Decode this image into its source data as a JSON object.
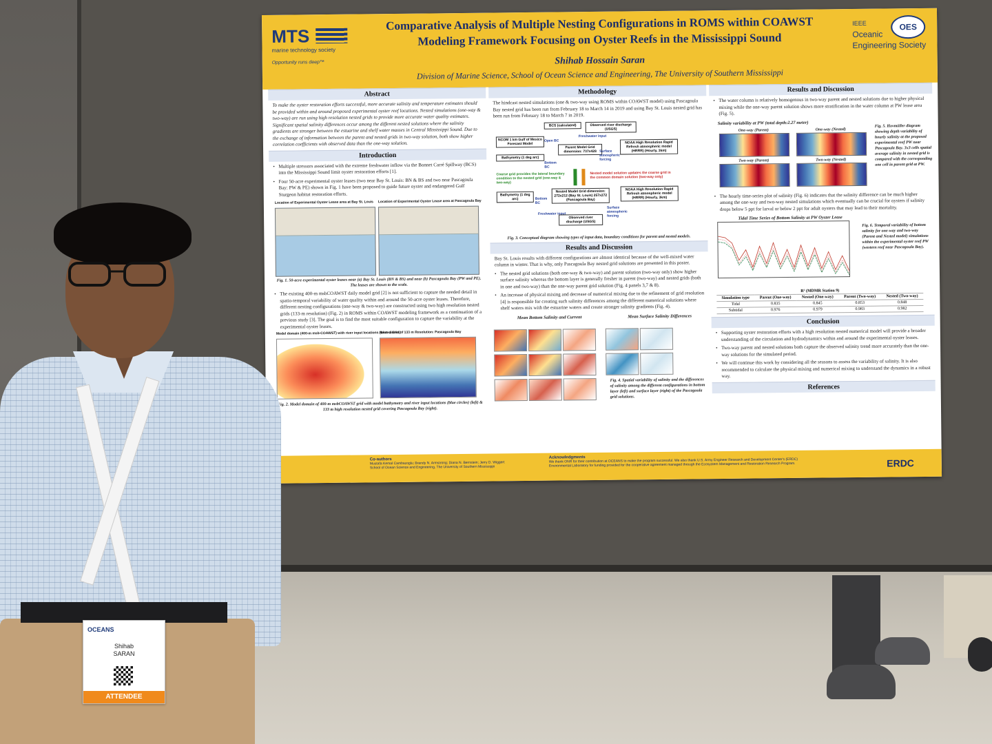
{
  "poster": {
    "mts": {
      "name": "MTS",
      "subtitle": "marine technology society",
      "tagline": "Opportunity runs deep™"
    },
    "title_line1": "Comparative Analysis of Multiple Nesting Configurations in ROMS within COAWST",
    "title_line2": "Modeling Framework Focusing on Oyster Reefs in the Mississippi Sound",
    "author": "Shihab Hossain Saran",
    "affiliation": "Division of Marine Science, School of Ocean Science and Engineering, The University of Southern Mississippi",
    "oes": {
      "badge": "OES",
      "ieee": "IEEE",
      "line1": "Oceanic",
      "line2": "Engineering Society"
    },
    "abstract": {
      "heading": "Abstract",
      "text": "To make the oyster restoration efforts successful, more accurate salinity and temperature estimates should be provided within and around proposed experimental oyster reef locations. Nested simulations (one-way & two-way) are run using high resolution nested grids to provide more accurate water quality estimates. Significant spatial salinity differences occur among the different nested solutions where the salinity gradients are stronger between the estuarine and shelf water masses in Central Mississippi Sound. Due to the exchange of information between the parent and nested grids in two-way solution, both show higher correlation coefficients with observed data than the one-way solution."
    },
    "introduction": {
      "heading": "Introduction",
      "bullets": [
        "Multiple stressors associated with the extreme freshwater inflow via the Bonnet Carré Spillway (BCS) into the Mississippi Sound limit oyster restoration efforts [1].",
        "Four 50-acre experimental oyster leases (two near Bay St. Louis: BN & BS and two near Pascagoula Bay: PW & PE) shown in Fig. 1 have been proposed to guide future oyster and endangered Gulf Sturgeon habitat restoration efforts."
      ],
      "map_title_1": "Location of Experimental Oyster Lease area at Bay St. Louis",
      "map_title_2": "Location of Experimental Oyster Lease area at Pascagoula Bay",
      "fig1_caption": "Fig. 1. 50-acre experimental oyster leases near (a) Bay St. Louis (BN & BS) and near (b) Pascagoula Bay (PW and PE). The leases are shown to the scale.",
      "bullet3": "The existing 400-m msbCOAWST daily model grid [2] is not sufficient to capture the needed detail in spatio-temporal variability of water quality within and around the 50-acre oyster leases. Therefore, different nesting configurations (one-way & two-way) are constructed using two high resolution nested grids (133-m resolution) (Fig. 2) in ROMS within COAWST modeling framework as a continuation of a previous study [3]. The goal is to find the most suitable configuration to capture the variability at the experimental oyster leases.",
      "domain_title_1": "Model domain (400-m msb-COAWST) with river input locations (blue circles)",
      "domain_title_2": "Nested Grid of 133 m Resolution: Pascagoula Bay",
      "fig2_caption": "Fig. 2. Model domain of 400-m msbCOAWST grid with model bathymetry and river input locations (blue circles) (left) & 133 m high resolution nested grid covering Pascagoula Bay (right)."
    },
    "methodology": {
      "heading": "Methodology",
      "text": "The hindcast nested simulations (one & two-way using ROMS within COAWST model) using Pascagoula Bay nested grid has been run from February 18 to March 14 in 2019 and using Bay St. Louis nested grid has been run from February 18 to March 7 in 2019.",
      "boxes": {
        "bcs": "BCS (calculated)",
        "river": "Observed river discharge (USGS)",
        "ncom": "NCOM 1 km Gulf of Mexico Forecast Model",
        "bathy": "Bathymetry (1 deg arc)",
        "parent": "Parent Model Grid dimension: 737x428",
        "noaa": "NOAA High Resolution Rapid Refresh atmospheric model (HRRR) (Hourly, 3km)",
        "nested": "Nested Model Grid dimension: 272x212 (Bay St. Louis) 257x272 (Pascagoula Bay)",
        "bathy2": "Bathymetry (1 deg arc)",
        "noaa2": "NOAA High Resolution Rapid Refresh atmospheric model (HRRR) (Hourly, 3km)",
        "river2": "Observed river discharge (USGS)"
      },
      "labels": {
        "open_bc": "Open BC",
        "fresh": "Freshwater input",
        "bottom": "Bottom BC",
        "surface": "Surface atmospheric forcing",
        "coarse": "Coarse grid provides the lateral boundary condition to the nested grid (one-way & two-way)",
        "update": "Nested model solution updates the coarse grid in the common domain solution (two-way only)",
        "bottom2": "Bottom BC",
        "surface2": "Surface atmospheric forcing",
        "fresh2": "Freshwater input"
      },
      "fig3_caption": "Fig. 3. Conceptual diagram showing types of input data, boundary conditions for parent and nested models."
    },
    "results_mid": {
      "heading": "Results and Discussion",
      "text": "Bay St. Louis results with different configurations are almost identical because of the well-mixed water column in winter. That is why, only Pascagoula Bay nested grid solutions are presented in this poster.",
      "bullets": [
        "The nested grid solutions (both one-way & two-way) and parent solution (two-way only) show higher surface salinity whereas the bottom layer is generally fresher in parent (two-way) and nested grids (both in one and two-way) than the one-way parent grid solution (Fig. 4 panels 3,7 & 8).",
        "An increase of physical mixing and decrease of numerical mixing due to the refinement of grid resolution [4] is responsible for creating such salinity differences among the different numerical solutions where shelf waters mix with the estuarine waters and create stronger salinity gradients (Fig. 4)."
      ],
      "panel_head_1": "Mean Bottom Salinity and Current",
      "panel_head_2": "Mean Surface Salinity Differences",
      "fig4_caption": "Fig. 4. Spatial variability of salinity and the differences of salinity among the different configurations in bottom layer (left) and surface layer (right) of the Pascagoula grid solutions."
    },
    "results_right": {
      "heading": "Results and Discussion",
      "bullet1": "The water column is relatively homogenous in two-way parent and nested solutions due to higher physical mixing while the one-way parent solution shows more stratification in the water column at PW lease area (Fig. 5).",
      "heat_title": "Salinity variability at PW (total depth:2.27 meter)",
      "heat_labels": [
        "One-way (Parent)",
        "One-way (Nested)",
        "Two-way (Parent)",
        "Two-way (Nested)"
      ],
      "fig5_caption": "Fig. 5. Hovmöller diagram showing depth variability of hourly salinity at the proposed experimental reef PW near Pascagoula Bay. 3x3 cells spatial average salinity in nested grid is compared with the corresponding one cell in parent grid at PW.",
      "bullet2": "The hourly time-series plot of salinity (Fig. 6) indicates that the salinity difference can be much higher among the one-way and two-way nested simulations which eventually can be crucial for oysters if salinity drops below 5 ppt for larval or below 2 ppt for adult oysters that may lead to their mortality.",
      "ts_title": "Tidal Time Series of Bottom Salinity at PW Oyster Lease",
      "fig6_caption": "Fig. 6. Temporal variability of bottom salinity for one-way and two-way (Parent and Nested model) simulations within the experimental oyster reef PW (western reef near Pascagoula Bay).",
      "table": {
        "title": "R² (MDMR Station 9)",
        "headers": [
          "Simulation type",
          "Parent (One-way)",
          "Nested (One-way)",
          "Parent (Two-way)",
          "Nested (Two-way)"
        ],
        "rows": [
          [
            "Tidal",
            "0.835",
            "0.845",
            "0.853",
            "0.848"
          ],
          [
            "Subtidal",
            "0.976",
            "0.979",
            "0.983",
            "0.982"
          ]
        ]
      }
    },
    "conclusion": {
      "heading": "Conclusion",
      "bullets": [
        "Supporting oyster restoration efforts with a high resolution nested numerical model will provide a broader understanding of the circulation and hydrodynamics within and around the experimental oyster leases.",
        "Two-way parent and nested solutions both capture the observed salinity trend more accurately than the one-way solutions for the simulated period.",
        "We will continue this work by considering all the seasons to assess the variability of salinity. It is also recommended to calculate the physical mixing and numerical mixing to understand the dynamics in a robust way."
      ]
    },
    "references": {
      "heading": "References"
    },
    "footer": {
      "coauthors_head": "Co-authors",
      "coauthors": "Mustafa Kemal Cambazoglu; Brandy N. Armstrong; Diana N. Bernstein; Jerry D. Wiggert",
      "coauthors_affil": "School of Ocean Science and Engineering, The University of Southern Mississippi",
      "ack_head": "Acknowledgments",
      "ack": "We thank ONR for their contribution at OCEANS to make the program successful. We also thank U.S. Army Engineer Research and Development Center's (ERDC) Environmental Laboratory for funding provided for the cooperative agreement managed through the Ecosystem Management and Restoration Research Program.",
      "erdc": "ERDC"
    }
  },
  "badge": {
    "org": "OCEANS",
    "name_line1": "Shihab",
    "name_line2": "SARAN",
    "role": "ATTENDEE"
  },
  "colors": {
    "poster_yellow": "#f2c230",
    "navy": "#1a2c6a",
    "badge_orange": "#f08a1c"
  }
}
